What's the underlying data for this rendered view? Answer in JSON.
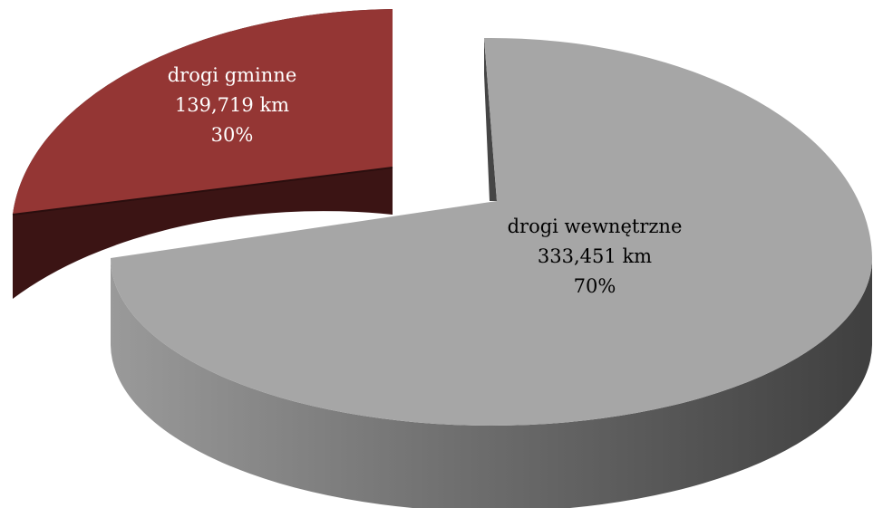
{
  "chart_data": {
    "type": "pie",
    "style": "3d-exploded",
    "slices": [
      {
        "key": "gminne",
        "category": "drogi gminne",
        "value": 139.719,
        "value_label": "139,719 km",
        "percent_label": "30%",
        "color": "#943634",
        "label_color": "#ffffff"
      },
      {
        "key": "wewnetrzne",
        "category": "drogi wewnętrzne",
        "value": 333.451,
        "value_label": "333,451 km",
        "percent_label": "70%",
        "color": "#a6a6a6",
        "label_color": "#000000"
      }
    ]
  }
}
